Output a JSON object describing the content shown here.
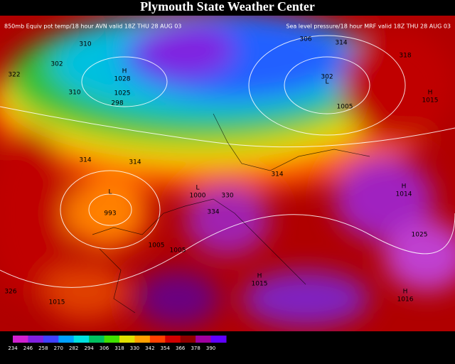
{
  "header": {
    "title": "Plymouth State Weather Center",
    "left": "850mb Equiv pot temp/18 hour AVN valid 18Z THU 28 AUG 03",
    "right": "Sea level pressure/18 hour MRF valid 18Z THU 28 AUG 03"
  },
  "map_labels": [
    "H",
    "1028",
    "1025",
    "L",
    "993",
    "L",
    "1000",
    "H",
    "1015",
    "H",
    "1014",
    "H",
    "1015",
    "H",
    "1016",
    "L",
    "1005",
    "1025",
    "1005",
    "1005",
    "1015",
    "310",
    "302",
    "310",
    "298",
    "314",
    "314",
    "322",
    "326",
    "318",
    "314",
    "306",
    "302",
    "314",
    "330",
    "334"
  ],
  "colorbar": {
    "colors": [
      "#d020d0",
      "#8020e0",
      "#4040ff",
      "#00a0ff",
      "#00e0e0",
      "#00c060",
      "#40e000",
      "#e0e000",
      "#ffa000",
      "#ff4000",
      "#d00000",
      "#900000",
      "#a000a0",
      "#6000ff"
    ],
    "ticks": [
      234,
      246,
      258,
      270,
      282,
      294,
      306,
      318,
      330,
      342,
      354,
      366,
      378,
      390
    ]
  }
}
